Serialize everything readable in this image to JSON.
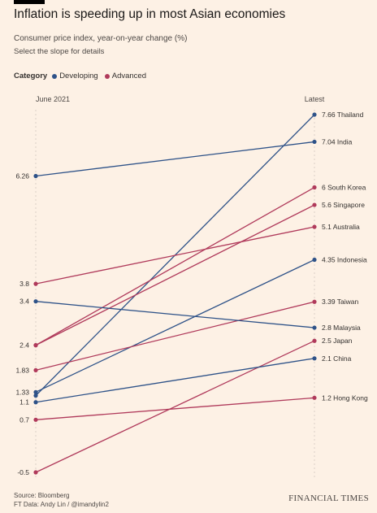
{
  "header": {
    "title": "Inflation is speeding up in most Asian economies",
    "subtitle": "Consumer price index, year-on-year change (%)",
    "hint": "Select the slope for details"
  },
  "legend": {
    "label": "Category",
    "items": [
      {
        "name": "Developing",
        "color": "#2e5288"
      },
      {
        "name": "Advanced",
        "color": "#b03a5b"
      }
    ]
  },
  "footer": {
    "source": "Source: Bloomberg",
    "credit": "FT Data: Andy Lin / @imandylin2",
    "brand": "FINANCIAL TIMES"
  },
  "chart_data": {
    "type": "slope",
    "x": [
      "June 2021",
      "Latest"
    ],
    "ylim": [
      -0.5,
      7.66
    ],
    "grid": false,
    "series": [
      {
        "name": "Thailand",
        "category": "Developing",
        "start": 1.25,
        "end": 7.66
      },
      {
        "name": "India",
        "category": "Developing",
        "start": 6.26,
        "end": 7.04
      },
      {
        "name": "South Korea",
        "category": "Advanced",
        "start": 2.4,
        "end": 6
      },
      {
        "name": "Singapore",
        "category": "Advanced",
        "start": 2.4,
        "end": 5.6
      },
      {
        "name": "Australia",
        "category": "Advanced",
        "start": 3.8,
        "end": 5.1
      },
      {
        "name": "Indonesia",
        "category": "Developing",
        "start": 1.33,
        "end": 4.35
      },
      {
        "name": "Taiwan",
        "category": "Advanced",
        "start": 1.83,
        "end": 3.39
      },
      {
        "name": "Malaysia",
        "category": "Developing",
        "start": 3.4,
        "end": 2.8
      },
      {
        "name": "Japan",
        "category": "Advanced",
        "start": -0.5,
        "end": 2.5
      },
      {
        "name": "China",
        "category": "Developing",
        "start": 1.1,
        "end": 2.1
      },
      {
        "name": "Hong Kong",
        "category": "Advanced",
        "start": 0.7,
        "end": 1.2
      }
    ],
    "start_labels": [
      "6.26",
      "3.8",
      "3.4",
      "2.4",
      "1.83",
      "1.33",
      "1.1",
      "0.7",
      "-0.5"
    ],
    "end_labels": [
      "7.66",
      "7.04",
      "6",
      "5.6",
      "5.1",
      "4.35",
      "3.39",
      "2.8",
      "2.5",
      "2.1",
      "1.2"
    ]
  }
}
